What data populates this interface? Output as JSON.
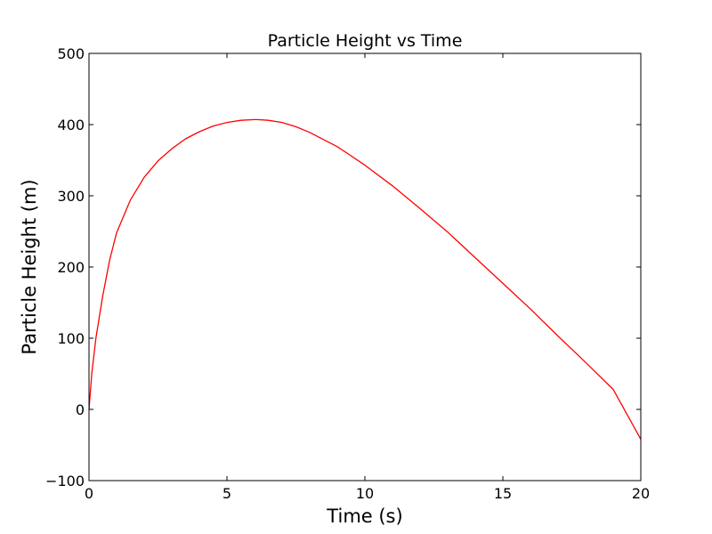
{
  "chart_data": {
    "type": "line",
    "title": "Particle Height vs Time",
    "xlabel": "Time (s)",
    "ylabel": "Particle Height (m)",
    "xlim": [
      0,
      20
    ],
    "ylim": [
      -100,
      500
    ],
    "xticks": [
      0,
      5,
      10,
      15,
      20
    ],
    "yticks": [
      -100,
      0,
      100,
      200,
      300,
      400,
      500
    ],
    "xtick_labels": [
      "0",
      "5",
      "10",
      "15",
      "20"
    ],
    "ytick_labels": [
      "−100",
      "0",
      "100",
      "200",
      "300",
      "400",
      "500"
    ],
    "grid": false,
    "legend": "none",
    "series": [
      {
        "color": "#ff0000",
        "x": [
          0,
          0.1,
          0.25,
          0.5,
          0.75,
          1,
          1.5,
          2,
          2.5,
          3,
          3.5,
          4,
          4.5,
          5,
          5.5,
          6,
          6.1,
          6.5,
          7,
          7.5,
          8,
          9,
          10,
          11,
          12,
          13,
          14,
          15,
          16,
          17,
          18,
          19,
          20
        ],
        "y": [
          0,
          50,
          100,
          160,
          210,
          248,
          294,
          326,
          349,
          366,
          380,
          390,
          398,
          403,
          406,
          407,
          407,
          406,
          403,
          397,
          389,
          369,
          343,
          314,
          282,
          249,
          213,
          177,
          141,
          103,
          66,
          28,
          -42
        ]
      }
    ]
  }
}
